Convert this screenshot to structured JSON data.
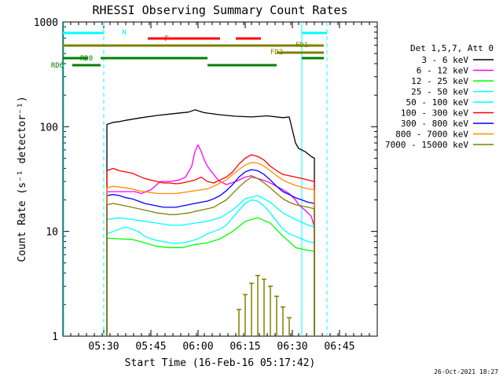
{
  "footer": {
    "timestamp": "26-Oct-2021 18:27"
  },
  "chart_data": {
    "type": "line",
    "title": "RHESSI Observing Summary Count Rates",
    "xlabel": "Start Time (16-Feb-16 05:17:42)",
    "ylabel": "Count Rate (s⁻¹ detector⁻¹)",
    "yscale": "log",
    "xlim_minutes": [
      0,
      100
    ],
    "ylim": [
      1,
      1000
    ],
    "x_ticks": [
      {
        "t": 13,
        "label": "05:30"
      },
      {
        "t": 28,
        "label": "05:45"
      },
      {
        "t": 43,
        "label": "06:00"
      },
      {
        "t": 58,
        "label": "06:15"
      },
      {
        "t": 73,
        "label": "06:30"
      },
      {
        "t": 88,
        "label": "06:45"
      }
    ],
    "y_ticks": [
      {
        "v": 1,
        "label": "1"
      },
      {
        "v": 10,
        "label": "10"
      },
      {
        "v": 100,
        "label": "100"
      },
      {
        "v": 1000,
        "label": "1000"
      }
    ],
    "legend_title": "Det 1,5,7, Att 0",
    "legend_position": "right",
    "series": [
      {
        "name": "3 - 6 keV",
        "color": "#000000",
        "x": [
          14,
          16,
          18,
          20,
          25,
          30,
          35,
          40,
          42,
          45,
          50,
          55,
          60,
          65,
          70,
          72,
          74,
          75,
          77,
          79,
          80
        ],
        "y": [
          105,
          110,
          112,
          115,
          122,
          128,
          133,
          138,
          145,
          136,
          130,
          126,
          124,
          127,
          122,
          124,
          70,
          62,
          58,
          52,
          50
        ]
      },
      {
        "name": "6 - 12 keV",
        "color": "#ff00ff",
        "x": [
          14,
          17,
          20,
          23,
          25,
          28,
          31,
          34,
          37,
          39,
          41,
          42,
          43,
          44,
          45,
          46,
          47,
          48,
          49,
          50,
          52,
          55,
          58,
          60,
          62,
          65,
          68,
          70,
          72,
          74,
          75,
          77,
          79,
          80
        ],
        "y": [
          24,
          24,
          24,
          24,
          23,
          25,
          30,
          30,
          31,
          33,
          42,
          58,
          67,
          58,
          48,
          42,
          38,
          35,
          32,
          30,
          28,
          30,
          33,
          34,
          32,
          30,
          27,
          25,
          23,
          20,
          18,
          16,
          14,
          11
        ]
      },
      {
        "name": "12 - 25 keV",
        "color": "#00ff00",
        "x": [
          14,
          18,
          22,
          26,
          30,
          34,
          38,
          42,
          46,
          50,
          54,
          58,
          62,
          66,
          70,
          72,
          74,
          76,
          78,
          80
        ],
        "y": [
          8.6,
          8.5,
          8.4,
          7.8,
          7.2,
          7.0,
          7.0,
          7.5,
          7.8,
          8.5,
          10,
          12.5,
          13.5,
          12,
          9,
          8,
          7,
          6.8,
          6.6,
          6.5
        ]
      },
      {
        "name": "25 - 50 keV",
        "color": "#00ffff",
        "x": [
          14,
          16,
          18,
          20,
          22,
          24,
          26,
          28,
          30,
          32,
          34,
          36,
          38,
          40,
          42,
          44,
          46,
          48,
          50,
          52,
          54,
          56,
          58,
          60,
          62,
          64,
          66,
          68,
          70,
          72,
          74,
          76,
          78,
          80
        ],
        "y": [
          9.5,
          10,
          10.5,
          11,
          10.5,
          10,
          9,
          8.5,
          8.2,
          8,
          7.8,
          7.7,
          7.8,
          8,
          8.3,
          8.8,
          9.5,
          10,
          10.5,
          11.5,
          13.5,
          16,
          18.5,
          20,
          19.5,
          17.5,
          15,
          12.5,
          10.5,
          9.5,
          9,
          8.5,
          8,
          7.8
        ]
      },
      {
        "name": "50 - 100 keV",
        "color": "#00ffff",
        "x": [
          14,
          18,
          22,
          26,
          30,
          34,
          38,
          42,
          46,
          50,
          54,
          58,
          62,
          66,
          70,
          74,
          78,
          80
        ],
        "y": [
          13,
          13.5,
          13,
          12.5,
          12,
          11.5,
          11.5,
          12,
          12.5,
          13.5,
          16,
          20.5,
          22,
          19,
          15,
          13,
          11.5,
          11
        ]
      },
      {
        "name": "100 - 300 keV",
        "color": "#ff0000",
        "x": [
          14,
          16,
          18,
          20,
          22,
          24,
          26,
          28,
          30,
          32,
          34,
          36,
          38,
          40,
          42,
          44,
          46,
          48,
          50,
          52,
          54,
          56,
          58,
          60,
          62,
          64,
          66,
          68,
          70,
          72,
          74,
          76,
          78,
          80
        ],
        "y": [
          38,
          40,
          38,
          37,
          36,
          34,
          32,
          31,
          30,
          29,
          29,
          28.5,
          29,
          30,
          31,
          33,
          30,
          29,
          31,
          33,
          37,
          44,
          50,
          54,
          52,
          48,
          42,
          38,
          35,
          34,
          33,
          32,
          31,
          30
        ]
      },
      {
        "name": "300 - 800 keV",
        "color": "#0000ff",
        "x": [
          14,
          16,
          18,
          20,
          22,
          24,
          26,
          28,
          30,
          32,
          34,
          36,
          38,
          40,
          42,
          44,
          46,
          48,
          50,
          52,
          54,
          56,
          58,
          60,
          62,
          64,
          66,
          68,
          70,
          72,
          74,
          76,
          78,
          80
        ],
        "y": [
          22,
          22.5,
          22,
          21,
          20.5,
          19.5,
          18.5,
          18,
          17.5,
          17,
          17,
          17,
          17.5,
          18,
          18.5,
          19,
          19.5,
          20.5,
          22,
          24.5,
          28,
          33,
          37,
          39,
          38,
          35,
          31,
          27,
          24,
          22.5,
          21,
          20,
          19,
          18.5
        ]
      },
      {
        "name": "800 - 7000 keV",
        "color": "#ff8c00",
        "x": [
          14,
          16,
          18,
          20,
          22,
          24,
          26,
          28,
          30,
          32,
          34,
          36,
          38,
          40,
          42,
          44,
          46,
          48,
          50,
          52,
          54,
          56,
          58,
          60,
          62,
          64,
          66,
          68,
          70,
          72,
          74,
          76,
          78,
          80
        ],
        "y": [
          26,
          27,
          26.5,
          26,
          25.5,
          24.5,
          24,
          23.5,
          23,
          23,
          23,
          23,
          23.5,
          24,
          24.5,
          25,
          25.5,
          27,
          29,
          31,
          35,
          39,
          43,
          45.5,
          45,
          42,
          38,
          34,
          31,
          29,
          27.5,
          26.5,
          25.5,
          25
        ]
      },
      {
        "name": "7000 - 15000 keV",
        "color": "#808000",
        "x": [
          14,
          16,
          18,
          20,
          22,
          24,
          26,
          28,
          30,
          32,
          34,
          36,
          38,
          40,
          42,
          44,
          46,
          48,
          50,
          52,
          54,
          56,
          58,
          60,
          62,
          64,
          66,
          68,
          70,
          72,
          74,
          76,
          78,
          80
        ],
        "y": [
          18,
          18.5,
          18,
          17.5,
          17,
          16.5,
          16,
          15.5,
          15,
          14.8,
          14.5,
          14.5,
          14.8,
          15,
          15.5,
          16,
          16.5,
          17,
          18.5,
          20,
          23,
          26.5,
          30,
          33,
          32,
          29,
          26,
          23,
          20.5,
          19,
          18,
          17.5,
          17,
          16.5
        ]
      }
    ],
    "background_counts": {
      "color": "#808000",
      "x": [
        56,
        58,
        60,
        62,
        64,
        66,
        68,
        70,
        72
      ],
      "y": [
        1.8,
        2.5,
        3.2,
        3.8,
        3.5,
        3.0,
        2.4,
        1.9,
        1.5
      ]
    },
    "status_bars": [
      {
        "label": "N",
        "color": "#00ffff",
        "segments": [
          [
            0,
            13
          ],
          [
            76,
            84
          ]
        ],
        "level": 0
      },
      {
        "label": "F",
        "color": "#ff0000",
        "segments": [
          [
            27,
            50
          ],
          [
            55,
            63
          ]
        ],
        "level": 1
      },
      {
        "label": "FD1",
        "color": "#808000",
        "segments": [
          [
            0,
            83
          ]
        ],
        "level": 2
      },
      {
        "label": "FD2",
        "color": "#808000",
        "segments": [
          [
            68,
            83
          ]
        ],
        "level": 3
      },
      {
        "label": "RD0",
        "color": "#008000",
        "segments": [
          [
            0,
            8
          ],
          [
            12,
            46
          ],
          [
            76,
            83
          ]
        ],
        "level": 4
      },
      {
        "label": "RD6",
        "color": "#008000",
        "segments": [
          [
            3,
            12
          ],
          [
            46,
            68
          ]
        ],
        "level": 5
      }
    ],
    "vertical_lines": [
      {
        "t": 13,
        "color": "#00ffff",
        "style": "dashed"
      },
      {
        "t": 76,
        "color": "#00ffff",
        "style": "solid"
      },
      {
        "t": 84,
        "color": "#00ffff",
        "style": "dashed"
      }
    ]
  }
}
